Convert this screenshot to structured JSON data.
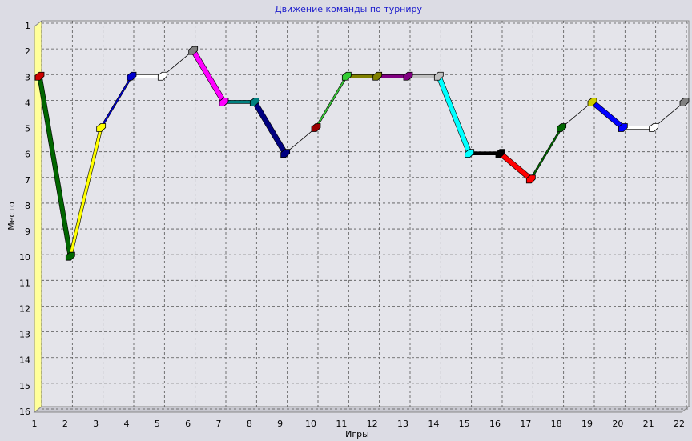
{
  "chart_data": {
    "type": "line",
    "title": "Движение команды по турниру",
    "x_label": "Игры",
    "y_label": "Место",
    "x": [
      1,
      2,
      3,
      4,
      5,
      6,
      7,
      8,
      9,
      10,
      11,
      12,
      13,
      14,
      15,
      16,
      17,
      18,
      19,
      20,
      21,
      22
    ],
    "series": [
      {
        "values": [
          3,
          10,
          5,
          3,
          3,
          2,
          4,
          4,
          6,
          5,
          3,
          3,
          3,
          3,
          6,
          6,
          7,
          5,
          4,
          5,
          5,
          4
        ],
        "colors": [
          "#cc0000",
          "#006600",
          "#ffff00",
          "#0000cc",
          "#ffffff",
          "#808080",
          "#ff00ff",
          "#008080",
          "#000080",
          "#990000",
          "#33cc33",
          "#808000",
          "#800080",
          "#c0c0c0",
          "#00ffff",
          "#000000",
          "#ff0000",
          "#006600",
          "#cccc00",
          "#0000ff",
          "#ffffff",
          "#808080"
        ]
      }
    ],
    "xlim": [
      1,
      22
    ],
    "ylim": [
      1,
      16
    ],
    "y_inverted": true,
    "xticks": [
      1,
      2,
      3,
      4,
      5,
      6,
      7,
      8,
      9,
      10,
      11,
      12,
      13,
      14,
      15,
      16,
      17,
      18,
      19,
      20,
      21,
      22
    ],
    "yticks": [
      1,
      2,
      3,
      4,
      5,
      6,
      7,
      8,
      9,
      10,
      11,
      12,
      13,
      14,
      15,
      16
    ],
    "grid": true
  }
}
